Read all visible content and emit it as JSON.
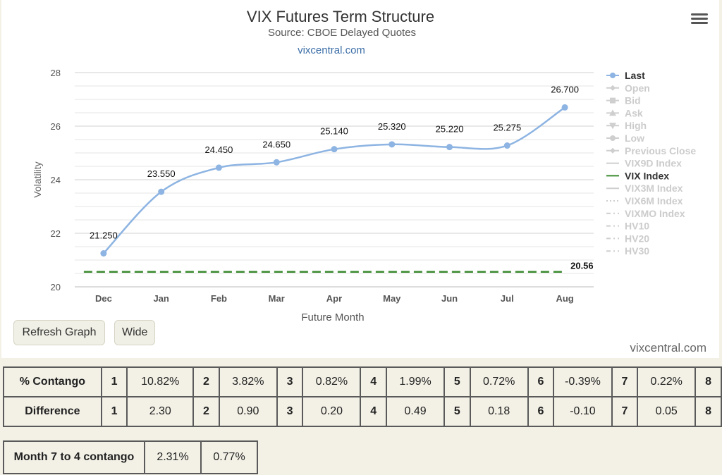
{
  "chart": {
    "title": "VIX Futures Term Structure",
    "subtitle": "Source: CBOE Delayed Quotes",
    "site_link": "vixcentral.com",
    "credit": "vixcentral.com",
    "line_color": "#8db4e2",
    "vix_color": "#3a8a2e"
  },
  "chart_data": {
    "type": "line",
    "categories": [
      "Dec",
      "Jan",
      "Feb",
      "Mar",
      "Apr",
      "May",
      "Jun",
      "Jul",
      "Aug"
    ],
    "series": [
      {
        "name": "Last",
        "values": [
          21.25,
          23.55,
          24.45,
          24.65,
          25.14,
          25.32,
          25.22,
          25.275,
          26.7
        ]
      },
      {
        "name": "VIX Index",
        "values": [
          20.56,
          20.56,
          20.56,
          20.56,
          20.56,
          20.56,
          20.56,
          20.56,
          20.56
        ]
      }
    ],
    "point_labels": [
      "21.250",
      "23.550",
      "24.450",
      "24.650",
      "25.140",
      "25.320",
      "25.220",
      "25.275",
      "26.700"
    ],
    "vix_label": "20.56",
    "xlabel": "Future Month",
    "ylabel": "Volatility",
    "ylim": [
      20,
      28
    ],
    "yticks": [
      20,
      22,
      24,
      26,
      28
    ],
    "grid": true,
    "legend_position": "right",
    "legend": [
      {
        "label": "Last",
        "active": true,
        "marker": "circle-line"
      },
      {
        "label": "Open",
        "active": false,
        "marker": "diamond-line"
      },
      {
        "label": "Bid",
        "active": false,
        "marker": "square-line"
      },
      {
        "label": "Ask",
        "active": false,
        "marker": "triangle-line"
      },
      {
        "label": "High",
        "active": false,
        "marker": "triangle-down-line"
      },
      {
        "label": "Low",
        "active": false,
        "marker": "circle-line"
      },
      {
        "label": "Previous Close",
        "active": false,
        "marker": "diamond-line"
      },
      {
        "label": "VIX9D Index",
        "active": false,
        "marker": "solid"
      },
      {
        "label": "VIX Index",
        "active": true,
        "marker": "solid-green"
      },
      {
        "label": "VIX3M Index",
        "active": false,
        "marker": "solid"
      },
      {
        "label": "VIX6M Index",
        "active": false,
        "marker": "dotted"
      },
      {
        "label": "VIXMO Index",
        "active": false,
        "marker": "dashdot"
      },
      {
        "label": "HV10",
        "active": false,
        "marker": "dashdot"
      },
      {
        "label": "HV20",
        "active": false,
        "marker": "dashdot"
      },
      {
        "label": "HV30",
        "active": false,
        "marker": "dashdot"
      }
    ]
  },
  "buttons": {
    "refresh": "Refresh Graph",
    "wide": "Wide"
  },
  "table": {
    "contango": {
      "label": "% Contango",
      "cells": [
        {
          "idx": "1",
          "val": "10.82%"
        },
        {
          "idx": "2",
          "val": "3.82%"
        },
        {
          "idx": "3",
          "val": "0.82%"
        },
        {
          "idx": "4",
          "val": "1.99%"
        },
        {
          "idx": "5",
          "val": "0.72%"
        },
        {
          "idx": "6",
          "val": "-0.39%"
        },
        {
          "idx": "7",
          "val": "0.22%"
        }
      ],
      "last_idx": "8"
    },
    "difference": {
      "label": "Difference",
      "cells": [
        {
          "idx": "1",
          "val": "2.30"
        },
        {
          "idx": "2",
          "val": "0.90"
        },
        {
          "idx": "3",
          "val": "0.20"
        },
        {
          "idx": "4",
          "val": "0.49"
        },
        {
          "idx": "5",
          "val": "0.18"
        },
        {
          "idx": "6",
          "val": "-0.10"
        },
        {
          "idx": "7",
          "val": "0.05"
        }
      ],
      "last_idx": "8"
    }
  },
  "month74": {
    "label": "Month 7 to 4 contango",
    "val1": "2.31%",
    "val2": "0.77%"
  }
}
